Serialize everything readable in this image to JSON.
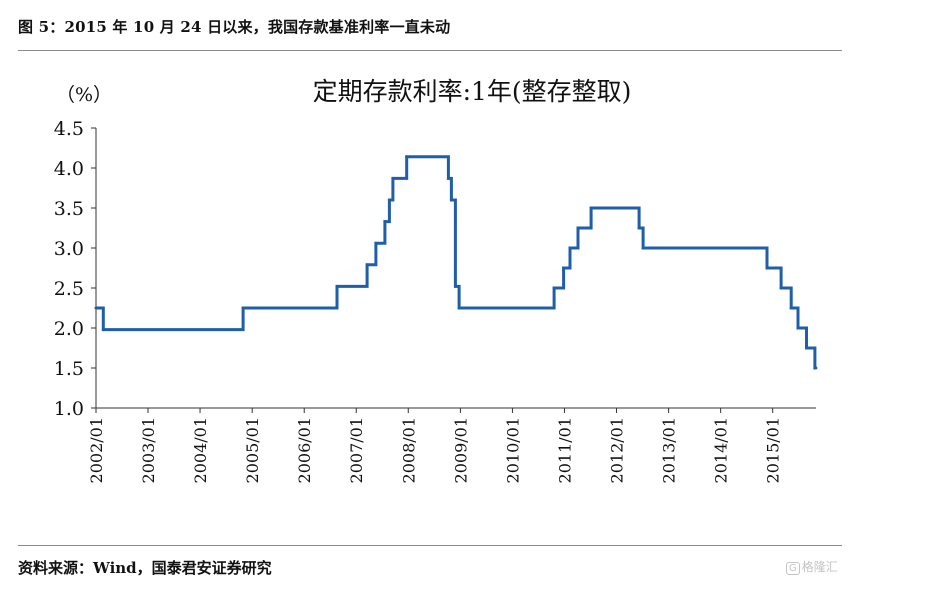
{
  "figure": {
    "title": "图 5：2015 年 10 月 24 日以来，我国存款基准利率一直未动",
    "source": "资料来源：Wind，国泰君安证券研究",
    "watermark": "格隆汇"
  },
  "chart_data": {
    "type": "line",
    "title": "定期存款利率:1年(整存整取)",
    "unit_label": "（%）",
    "xlabel": "",
    "ylabel": "",
    "ylim": [
      1.0,
      4.5
    ],
    "yticks": [
      "1.0",
      "1.5",
      "2.0",
      "2.5",
      "3.0",
      "3.5",
      "4.0",
      "4.5"
    ],
    "xlim": [
      "2002-01",
      "2015-11"
    ],
    "xticks": [
      "2002/01",
      "2003/01",
      "2004/01",
      "2005/01",
      "2006/01",
      "2007/01",
      "2008/01",
      "2009/01",
      "2010/01",
      "2011/01",
      "2012/01",
      "2013/01",
      "2014/01",
      "2015/01"
    ],
    "grid": false,
    "line_color": "#1f5fa8",
    "series": [
      {
        "name": "",
        "step": true,
        "points": [
          {
            "date": "2002-01-01",
            "value": 2.25
          },
          {
            "date": "2002-02-21",
            "value": 1.98
          },
          {
            "date": "2004-10-29",
            "value": 2.25
          },
          {
            "date": "2006-08-19",
            "value": 2.52
          },
          {
            "date": "2007-03-18",
            "value": 2.79
          },
          {
            "date": "2007-05-19",
            "value": 3.06
          },
          {
            "date": "2007-07-21",
            "value": 3.33
          },
          {
            "date": "2007-08-22",
            "value": 3.6
          },
          {
            "date": "2007-09-15",
            "value": 3.87
          },
          {
            "date": "2007-12-21",
            "value": 4.14
          },
          {
            "date": "2008-10-09",
            "value": 3.87
          },
          {
            "date": "2008-10-30",
            "value": 3.6
          },
          {
            "date": "2008-11-27",
            "value": 2.52
          },
          {
            "date": "2008-12-23",
            "value": 2.25
          },
          {
            "date": "2010-10-20",
            "value": 2.5
          },
          {
            "date": "2010-12-26",
            "value": 2.75
          },
          {
            "date": "2011-02-09",
            "value": 3.0
          },
          {
            "date": "2011-04-06",
            "value": 3.25
          },
          {
            "date": "2011-07-07",
            "value": 3.5
          },
          {
            "date": "2012-06-08",
            "value": 3.25
          },
          {
            "date": "2012-07-06",
            "value": 3.0
          },
          {
            "date": "2014-11-22",
            "value": 2.75
          },
          {
            "date": "2015-03-01",
            "value": 2.5
          },
          {
            "date": "2015-05-11",
            "value": 2.25
          },
          {
            "date": "2015-06-28",
            "value": 2.0
          },
          {
            "date": "2015-08-26",
            "value": 1.75
          },
          {
            "date": "2015-10-24",
            "value": 1.5
          },
          {
            "date": "2015-10-31",
            "value": 1.5
          }
        ]
      }
    ]
  }
}
